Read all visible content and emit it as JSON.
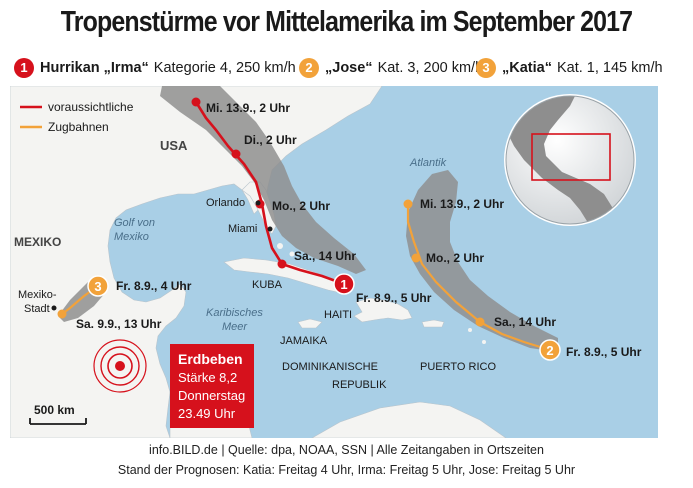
{
  "title": "Tropenstürme vor Mittelamerika im September 2017",
  "storms": [
    {
      "badge": "1",
      "name": "Hurrikan „Irma“",
      "detail": "Kategorie 4, 250 km/h",
      "color": "#d6111c"
    },
    {
      "badge": "2",
      "name": "„Jose“",
      "detail": "Kat. 3, 200 km/h",
      "color": "#f2a23a"
    },
    {
      "badge": "3",
      "name": "„Katia“",
      "detail": "Kat. 1, 145 km/h",
      "color": "#f2a23a"
    }
  ],
  "map_legend": {
    "line1": "voraussichtliche",
    "line2": "Zugbahnen",
    "red_color": "#d6111c",
    "orange_color": "#f2a23a"
  },
  "places": {
    "usa": "USA",
    "mexiko": "MEXIKO",
    "golf1": "Golf von",
    "golf2": "Mexiko",
    "atlantik": "Atlantik",
    "orlando": "Orlando",
    "miami": "Miami",
    "kuba": "KUBA",
    "haiti": "HAITI",
    "jamaika": "JAMAIKA",
    "dom1": "DOMINIKANISCHE",
    "dom2": "REPUBLIK",
    "puerto": "PUERTO RICO",
    "karib1": "Karibisches",
    "karib2": "Meer",
    "mexstadt1": "Mexiko-",
    "mexstadt2": "Stadt"
  },
  "irma_points": {
    "p1": "Fr. 8.9., 5 Uhr",
    "p2": "Sa., 14 Uhr",
    "p3": "Mo., 2 Uhr",
    "p4": "Di., 2 Uhr",
    "p5": "Mi. 13.9., 2 Uhr"
  },
  "jose_points": {
    "p1": "Fr. 8.9., 5 Uhr",
    "p2": "Sa., 14 Uhr",
    "p3": "Mo., 2 Uhr",
    "p4": "Mi. 13.9., 2 Uhr"
  },
  "katia_points": {
    "p1": "Fr. 8.9., 4 Uhr",
    "p2": "Sa. 9.9., 13 Uhr"
  },
  "quake": {
    "line1": "Erdbeben",
    "line2": "Stärke 8,2",
    "line3": "Donnerstag",
    "line4": "23.49 Uhr",
    "color": "#d6111c"
  },
  "scale": "500 km",
  "colors": {
    "sea": "#a9cfe6",
    "land": "#f4f4f2",
    "cone": "#8f8f8f",
    "red": "#d6111c",
    "orange": "#f2a23a"
  },
  "footer_line1": "info.BILD.de | Quelle: dpa, NOAA, SSN | Alle Zeitangaben in Ortszeiten",
  "footer_line2": "Stand der Prognosen: Katia: Freitag 4 Uhr, Irma: Freitag 5 Uhr, Jose: Freitag 5 Uhr"
}
